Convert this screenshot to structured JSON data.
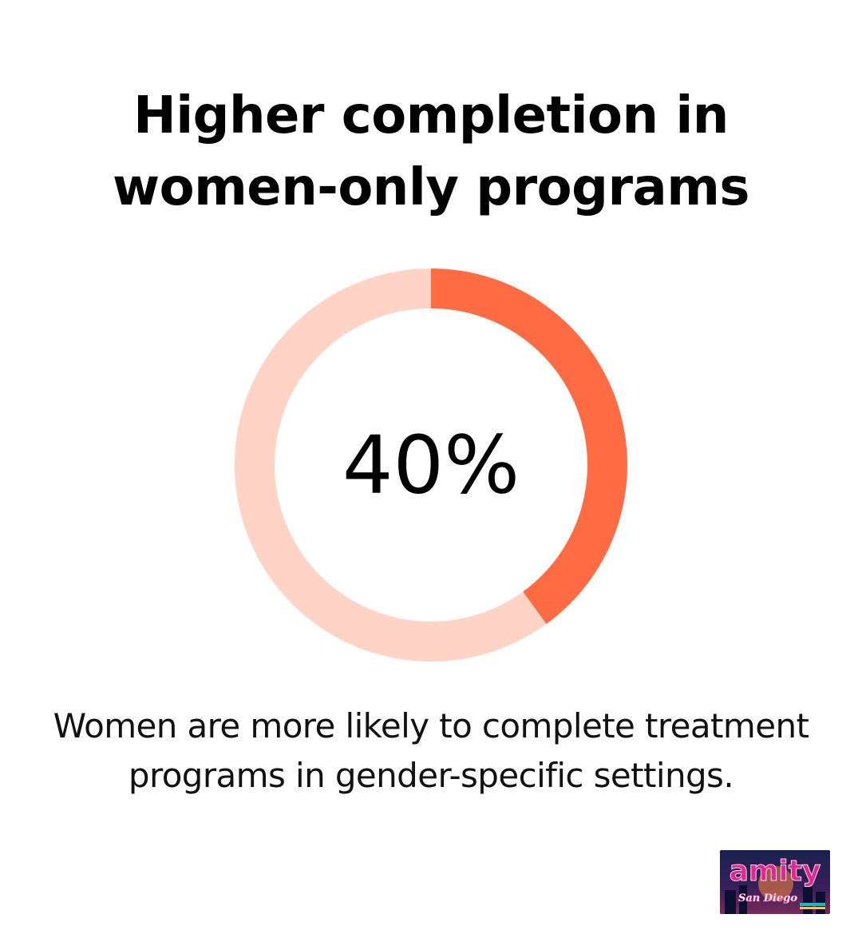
{
  "title_line1": "Higher completion in",
  "title_line2": "women-only programs",
  "caption_line1": "Women are more likely to complete treatment",
  "caption_line2": "programs in gender-specific settings.",
  "chart_data": {
    "type": "pie",
    "value_label": "40%",
    "slices": [
      {
        "value": 40,
        "color": "#ff6b42"
      },
      {
        "value": 60,
        "color": "#ffd3c6"
      }
    ]
  },
  "logo": {
    "name": "amity-san-diego-logo",
    "text": "amity",
    "subtext": "San Diego",
    "colors": {
      "background": "#12183a",
      "magenta": "#e0288f",
      "orange": "#ff8a3c",
      "pink": "#ff6fb3"
    }
  }
}
